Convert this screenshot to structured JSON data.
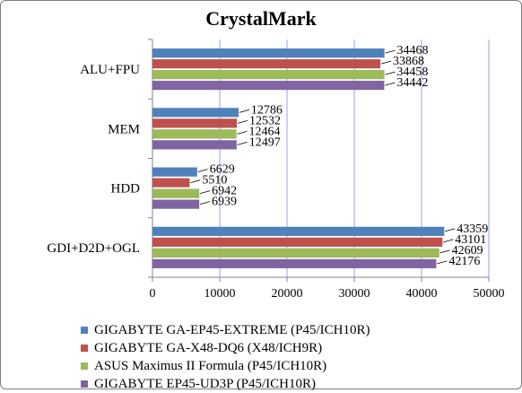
{
  "chart_data": {
    "type": "bar",
    "orientation": "horizontal",
    "title": "CrystalMark",
    "xlabel": "",
    "ylabel": "",
    "xlim": [
      0,
      50000
    ],
    "ticks": [
      "0",
      "10000",
      "20000",
      "30000",
      "40000",
      "50000"
    ],
    "tick_values": [
      0,
      10000,
      20000,
      30000,
      40000,
      50000
    ],
    "grid": "vertical",
    "legend_position": "bottom",
    "categories": [
      "ALU+FPU",
      "MEM",
      "HDD",
      "GDI+D2D+OGL"
    ],
    "series": [
      {
        "name": "GIGABYTE GA-EP45-EXTREME (P45/ICH10R)",
        "color": "#4f81bd",
        "values": [
          34468,
          12786,
          6629,
          43359
        ]
      },
      {
        "name": "GIGABYTE GA-X48-DQ6 (X48/ICH9R)",
        "color": "#c0504d",
        "values": [
          33868,
          12532,
          5510,
          43101
        ]
      },
      {
        "name": "ASUS Maximus II Formula (P45/ICH10R)",
        "color": "#9bbb59",
        "values": [
          34458,
          12464,
          6942,
          42609
        ]
      },
      {
        "name": "GIGABYTE EP45-UD3P (P45/ICH10R)",
        "color": "#8064a2",
        "values": [
          34442,
          12497,
          6939,
          42176
        ]
      }
    ]
  }
}
